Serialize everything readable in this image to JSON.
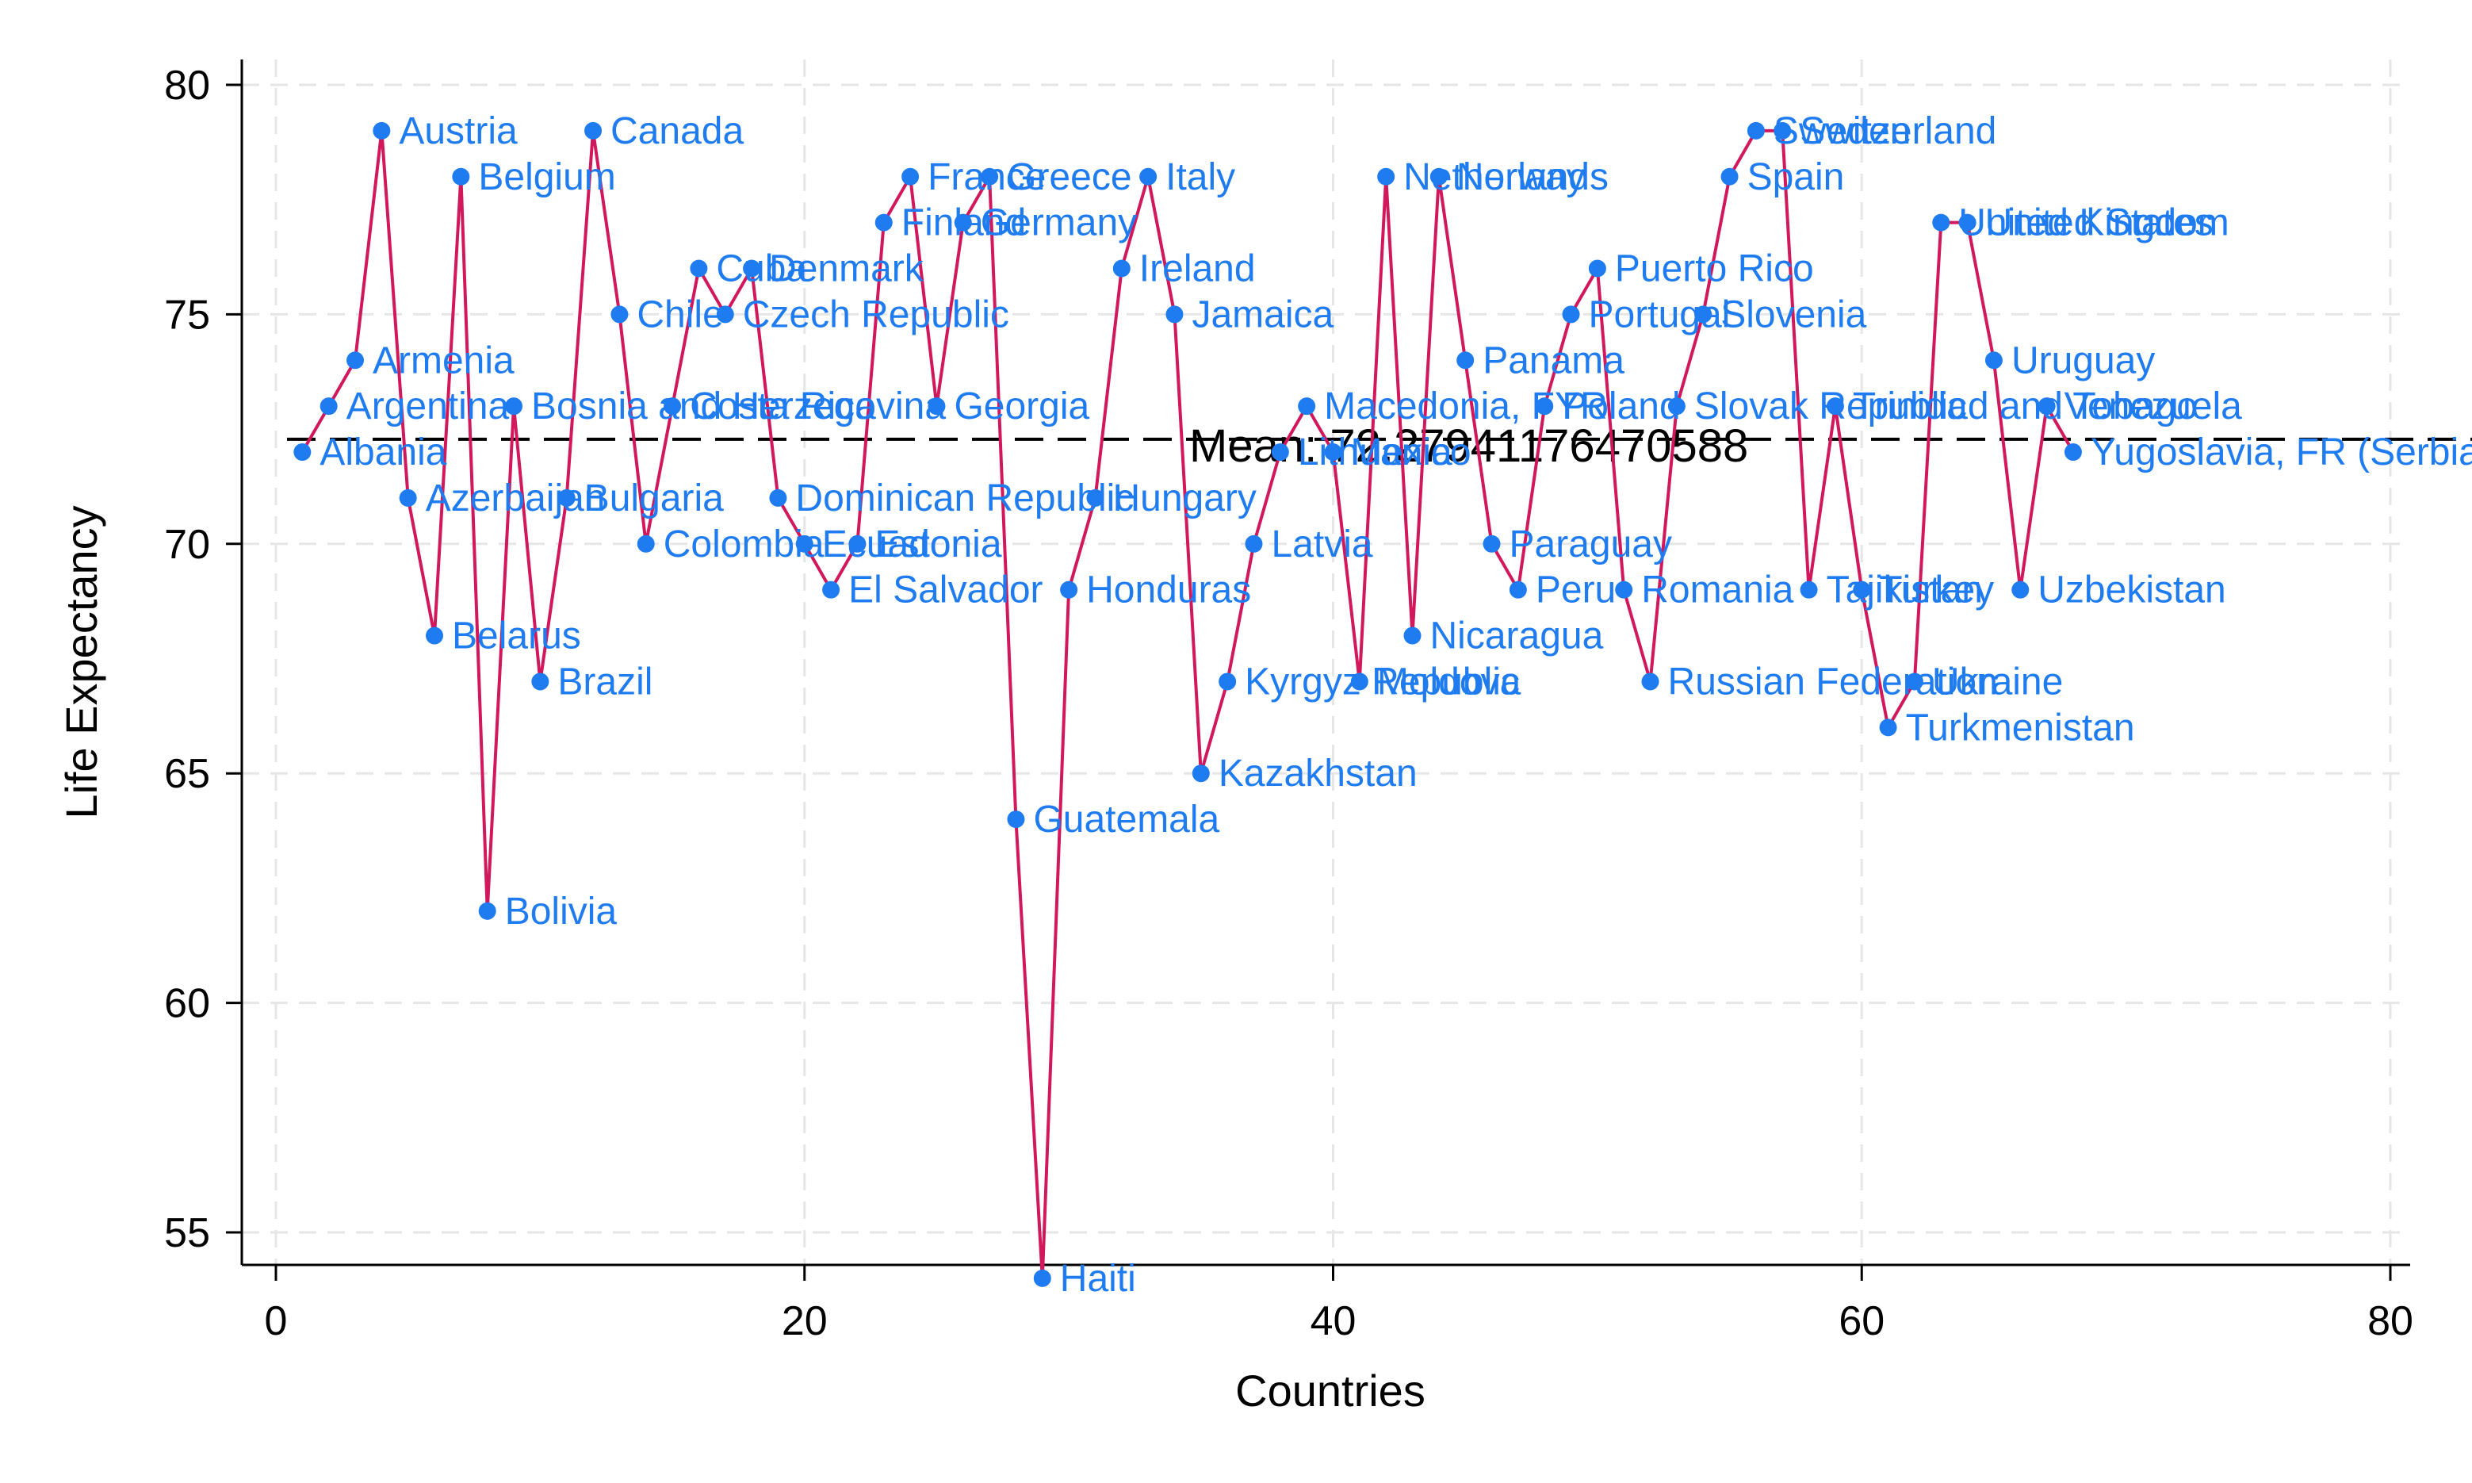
{
  "chart_data": {
    "type": "line",
    "title": "",
    "xlabel": "Countries",
    "ylabel": "Life Expectancy",
    "xlim": [
      0,
      80
    ],
    "ylim": [
      53.5,
      80.5
    ],
    "xticks": [
      0,
      20,
      40,
      60,
      80
    ],
    "yticks": [
      55,
      60,
      65,
      70,
      75,
      80
    ],
    "grid": true,
    "legend": "none",
    "colors": {
      "line": "#d1185c",
      "marker": "#1f7cf0",
      "label": "#1f7cf0",
      "mean_line": "#000000",
      "grid": "#e6e6e6"
    },
    "mean": {
      "value": 72.27941176470588,
      "label": "Mean: 72.27941176470588"
    },
    "series": [
      {
        "x": [
          1,
          2,
          3,
          4,
          5,
          6,
          7,
          8,
          9,
          10,
          11,
          12,
          13,
          14,
          15,
          16,
          17,
          18,
          19,
          20,
          21,
          22,
          23,
          24,
          25,
          26,
          27,
          28,
          29,
          30,
          31,
          32,
          33,
          34,
          35,
          36,
          37,
          38,
          39,
          40,
          41,
          42,
          43,
          44,
          45,
          46,
          47,
          48,
          49,
          50,
          51,
          52,
          53,
          54,
          55,
          56,
          57,
          58,
          59,
          60,
          61,
          62,
          63,
          64,
          65,
          66,
          67,
          68
        ],
        "y": [
          72,
          73,
          74,
          79,
          71,
          68,
          78,
          62,
          73,
          67,
          71,
          79,
          75,
          70,
          73,
          76,
          75,
          76,
          71,
          70,
          69,
          70,
          77,
          78,
          73,
          77,
          78,
          64,
          54,
          69,
          71,
          76,
          78,
          75,
          65,
          67,
          70,
          72,
          73,
          72,
          67,
          78,
          68,
          78,
          74,
          70,
          69,
          73,
          75,
          76,
          69,
          67,
          73,
          75,
          78,
          79,
          79,
          69,
          73,
          69,
          66,
          67,
          77,
          77,
          74,
          69,
          73,
          72
        ],
        "labels": [
          "Albania",
          "Argentina",
          "Armenia",
          "Austria",
          "Azerbaijan",
          "Belarus",
          "Belgium",
          "Bolivia",
          "Bosnia and Herzegovina",
          "Brazil",
          "Bulgaria",
          "Canada",
          "Chile",
          "Colombia",
          "Costa Rica",
          "Cuba",
          "Czech Republic",
          "Denmark",
          "Dominican Republic",
          "Ecuador",
          "El Salvador",
          "Estonia",
          "Finland",
          "France",
          "Georgia",
          "Germany",
          "Greece",
          "Guatemala",
          "Haiti",
          "Honduras",
          "Hungary",
          "Ireland",
          "Italy",
          "Jamaica",
          "Kazakhstan",
          "Kyrgyz Republic",
          "Latvia",
          "Lithuania",
          "Macedonia, FYR",
          "Mexico",
          "Moldova",
          "Netherlands",
          "Nicaragua",
          "Norway",
          "Panama",
          "Paraguay",
          "Peru",
          "Poland",
          "Portugal",
          "Puerto Rico",
          "Romania",
          "Russian Federation",
          "Slovak Republic",
          "Slovenia",
          "Spain",
          "Sweden",
          "Switzerland",
          "Tajikistan",
          "Trinidad and Tobago",
          "Turkey",
          "Turkmenistan",
          "Ukraine",
          "United Kingdom",
          "United States",
          "Uruguay",
          "Uzbekistan",
          "Venezuela",
          "Yugoslavia, FR (Serbia/Montenegro)"
        ]
      }
    ]
  }
}
